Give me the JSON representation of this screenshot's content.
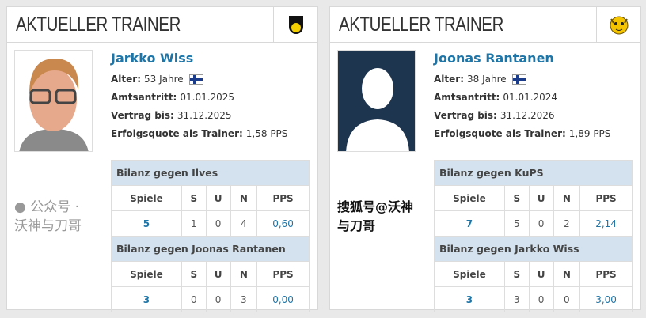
{
  "cards": [
    {
      "title": "AKTUELLER TRAINER",
      "club_logo": "KuPS",
      "name": "Jarkko Wiss",
      "age_label": "Alter:",
      "age": "53 Jahre",
      "nationality_flag": "finland-flag",
      "start_label": "Amtsantritt:",
      "start": "01.01.2025",
      "contract_label": "Vertrag bis:",
      "contract": "31.12.2025",
      "rate_label": "Erfolgsquote als Trainer:",
      "rate": "1,58 PPS",
      "tables": [
        {
          "header": "Bilanz gegen Ilves",
          "cols": [
            "Spiele",
            "S",
            "U",
            "N",
            "PPS"
          ],
          "vals": [
            "5",
            "1",
            "0",
            "4",
            "0,60"
          ]
        },
        {
          "header": "Bilanz gegen Joonas Rantanen",
          "cols": [
            "Spiele",
            "S",
            "U",
            "N",
            "PPS"
          ],
          "vals": [
            "3",
            "0",
            "0",
            "3",
            "0,00"
          ]
        }
      ]
    },
    {
      "title": "AKTUELLER TRAINER",
      "club_logo": "Ilves",
      "name": "Joonas Rantanen",
      "age_label": "Alter:",
      "age": "38 Jahre",
      "nationality_flag": "finland-flag",
      "start_label": "Amtsantritt:",
      "start": "01.01.2024",
      "contract_label": "Vertrag bis:",
      "contract": "31.12.2026",
      "rate_label": "Erfolgsquote als Trainer:",
      "rate": "1,89 PPS",
      "tables": [
        {
          "header": "Bilanz gegen KuPS",
          "cols": [
            "Spiele",
            "S",
            "U",
            "N",
            "PPS"
          ],
          "vals": [
            "7",
            "5",
            "0",
            "2",
            "2,14"
          ]
        },
        {
          "header": "Bilanz gegen Jarkko Wiss",
          "cols": [
            "Spiele",
            "S",
            "U",
            "N",
            "PPS"
          ],
          "vals": [
            "3",
            "3",
            "0",
            "0",
            "3,00"
          ]
        }
      ]
    }
  ],
  "watermark": {
    "wechat": "公众号 · 沃神与刀哥",
    "sohu": "搜狐号@沃神与刀哥"
  }
}
